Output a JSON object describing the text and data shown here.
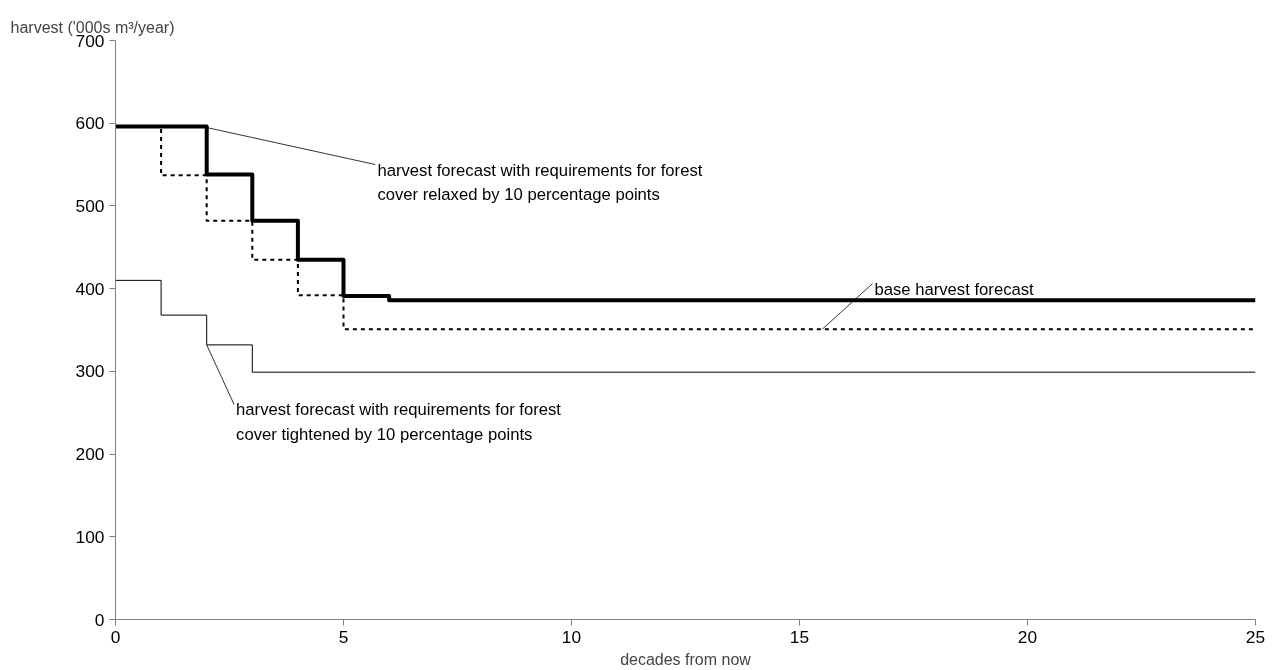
{
  "chart_data": {
    "type": "step",
    "xlabel": "decades from now",
    "ylabel": "harvest ('000s m³/year)",
    "xlim": [
      0,
      25
    ],
    "xticks": [
      0,
      5,
      10,
      15,
      20,
      25
    ],
    "ylim": [
      0,
      700
    ],
    "yticks": [
      0,
      100,
      200,
      300,
      400,
      500,
      600,
      700
    ],
    "grid": false,
    "series": [
      {
        "color": "#000000",
        "line_style": "solid",
        "x": [
          0,
          2,
          3,
          4,
          5,
          6,
          25
        ],
        "values": [
          596,
          538,
          482,
          435,
          391,
          386,
          386
        ]
      },
      {
        "color": "#000000",
        "line_style": "dashed",
        "x": [
          0,
          1,
          2,
          3,
          4,
          5,
          25
        ],
        "values": [
          596,
          537,
          482,
          435,
          392,
          351,
          351
        ]
      },
      {
        "color": "#000000",
        "line_style": "solid",
        "x": [
          0,
          1,
          2,
          3,
          25
        ],
        "values": [
          410,
          368,
          332,
          299,
          299
        ]
      }
    ],
    "annotations": [
      {
        "text": "harvest forecast with requirements for forest\ncover relaxed by 10 percentage points",
        "x": 1.9,
        "y": 596
      },
      {
        "text": "base harvest forecast",
        "x": 15.5,
        "y": 351
      },
      {
        "text": "harvest forecast with requirements for forest\ncover tightened by 10 percentage points",
        "x": 2.0,
        "y": 332
      }
    ]
  }
}
